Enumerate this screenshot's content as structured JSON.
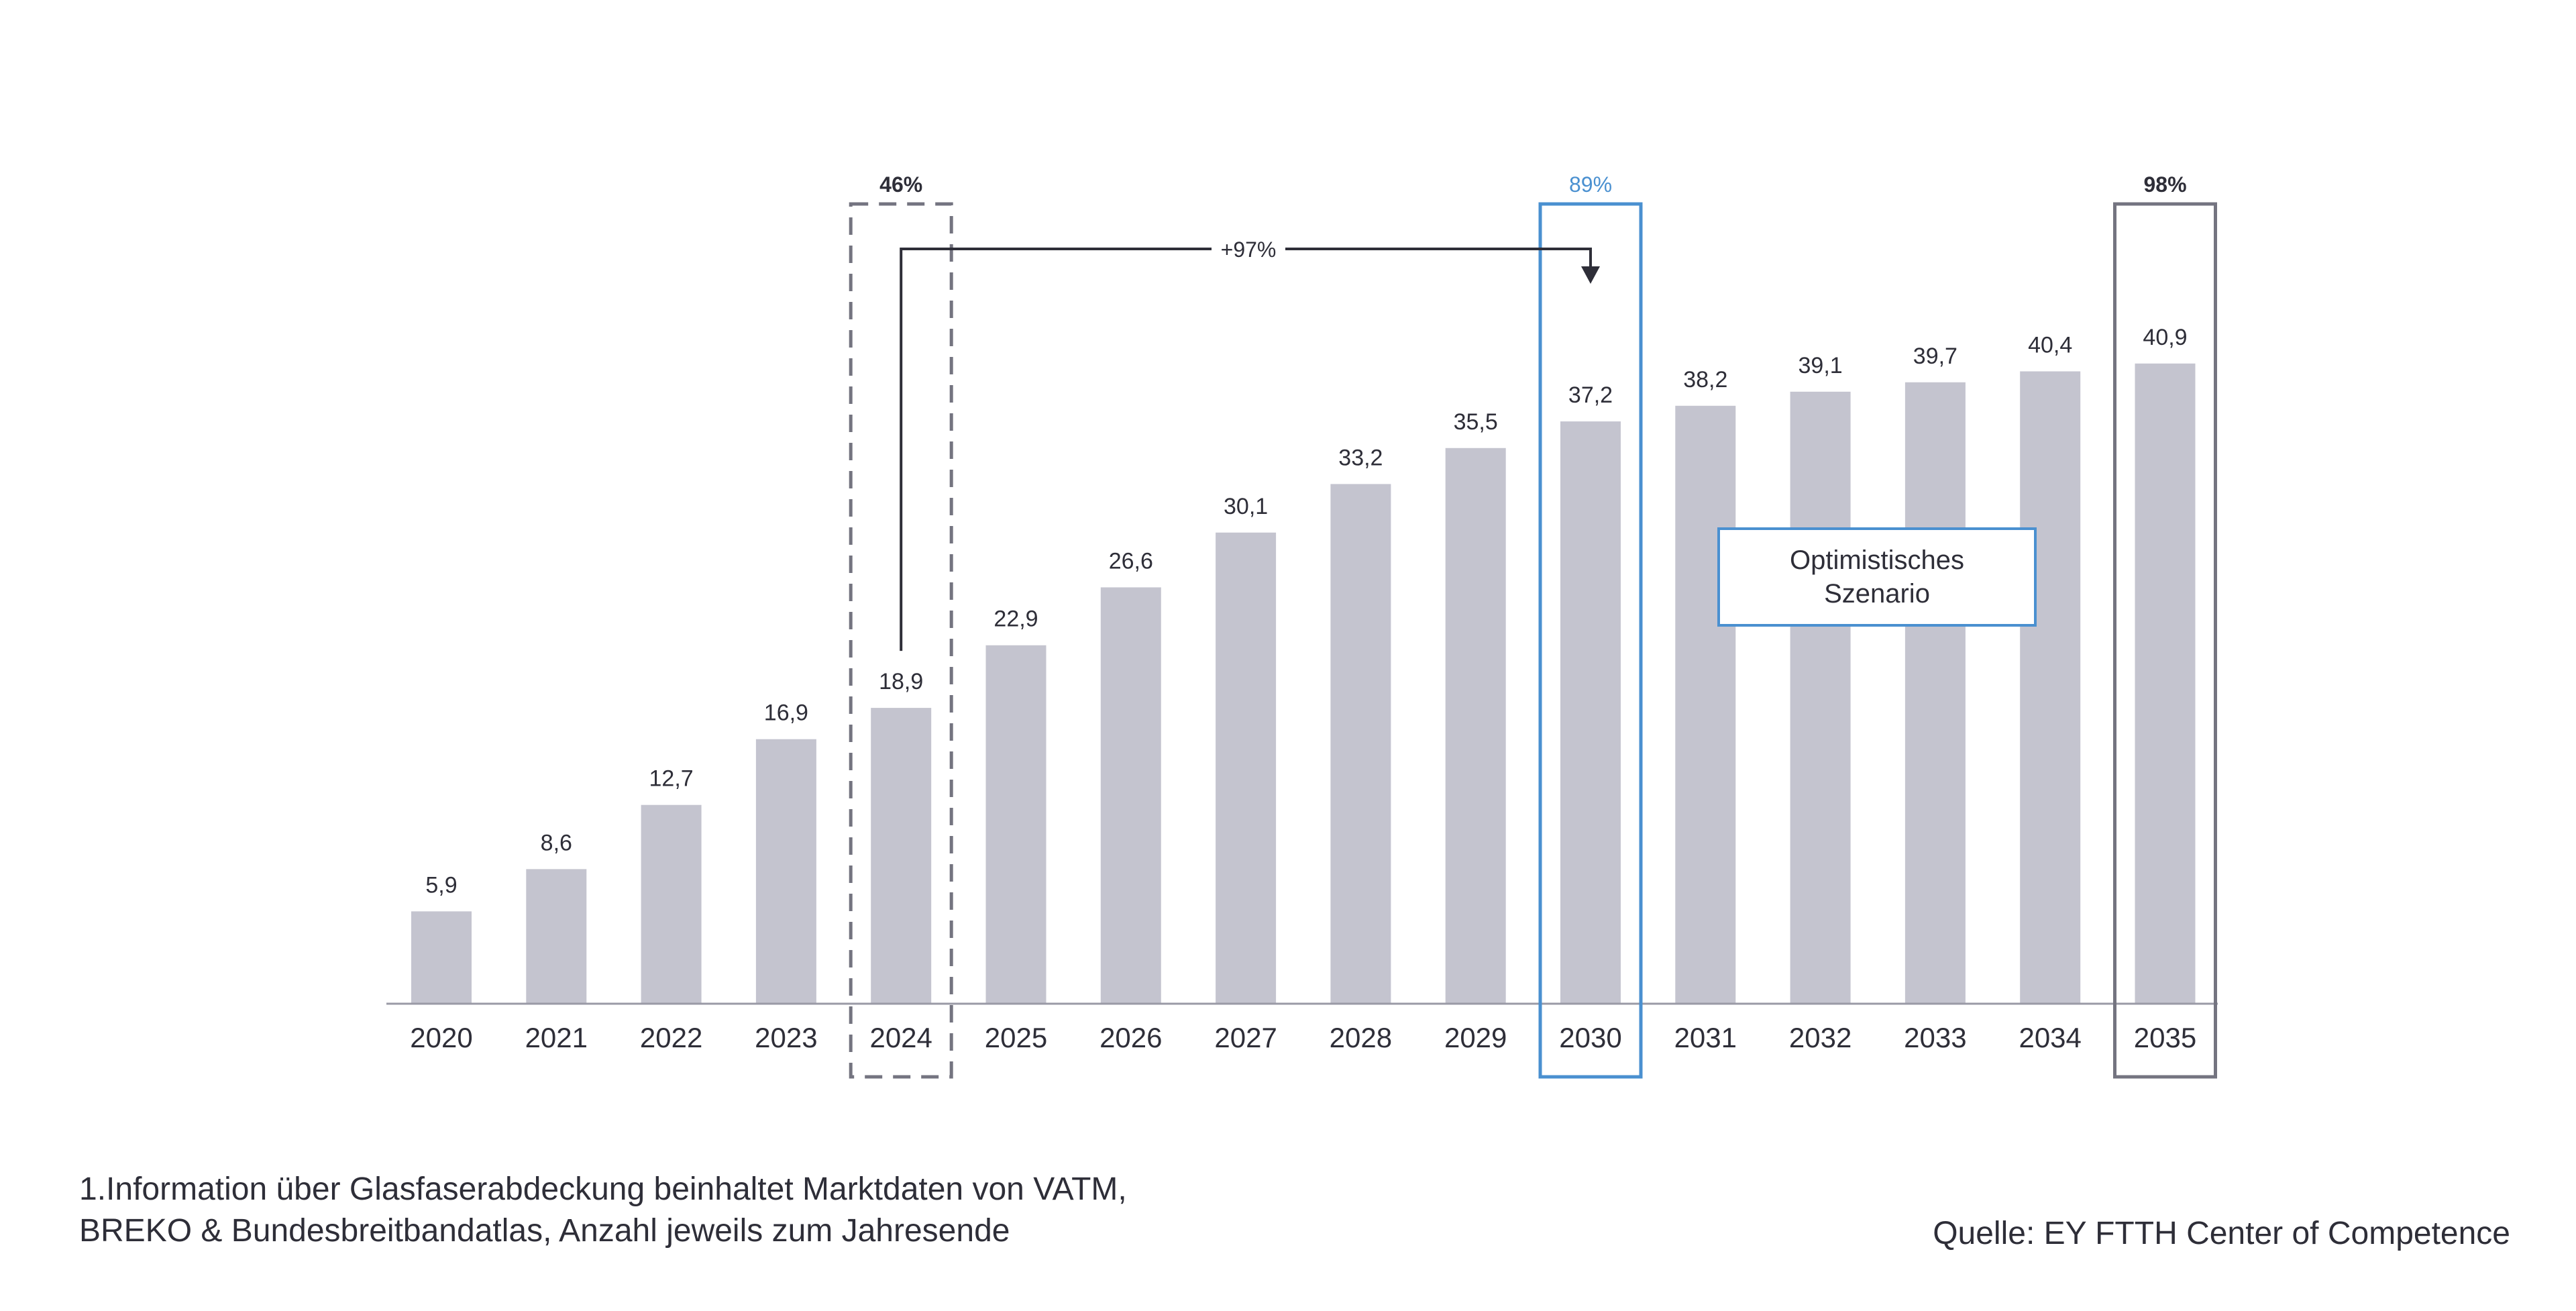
{
  "colors": {
    "bar": "#c4c4cf",
    "text": "#2e2e38",
    "baseline": "#9a9aa6",
    "highlight_2024": "#747480",
    "highlight_2030": "#4a90d0",
    "highlight_2035": "#747480",
    "arrow": "#2e2e38"
  },
  "chart_data": {
    "type": "bar",
    "categories": [
      "2020",
      "2021",
      "2022",
      "2023",
      "2024",
      "2025",
      "2026",
      "2027",
      "2028",
      "2029",
      "2030",
      "2031",
      "2032",
      "2033",
      "2034",
      "2035"
    ],
    "values": [
      5.9,
      8.6,
      12.7,
      16.9,
      18.9,
      22.9,
      26.6,
      30.1,
      33.2,
      35.5,
      37.2,
      38.2,
      39.1,
      39.7,
      40.4,
      40.9
    ],
    "value_labels": [
      "5,9",
      "8,6",
      "12,7",
      "16,9",
      "18,9",
      "22,9",
      "26,6",
      "30,1",
      "33,2",
      "35,5",
      "37,2",
      "38,2",
      "39,1",
      "39,7",
      "40,4",
      "40,9"
    ],
    "ylim": [
      0,
      45
    ],
    "highlights": [
      {
        "category": "2024",
        "percent_label": "46%",
        "style": "dashed",
        "color": "#747480"
      },
      {
        "category": "2030",
        "percent_label": "89%",
        "style": "solid",
        "color": "#4a90d0"
      },
      {
        "category": "2035",
        "percent_label": "98%",
        "style": "solid",
        "color": "#747480"
      }
    ],
    "growth_arrow": {
      "from": "2024",
      "to": "2030",
      "label": "+97%"
    },
    "annotation": {
      "line1": "Optimistisches",
      "line2": "Szenario"
    }
  },
  "footnote": {
    "line1": "1.Information über Glasfaserabdeckung beinhaltet Marktdaten von VATM,",
    "line2": "BREKO & Bundesbreitbandatlas, Anzahl jeweils zum Jahresende"
  },
  "source": "Quelle: EY FTTH Center of Competence"
}
